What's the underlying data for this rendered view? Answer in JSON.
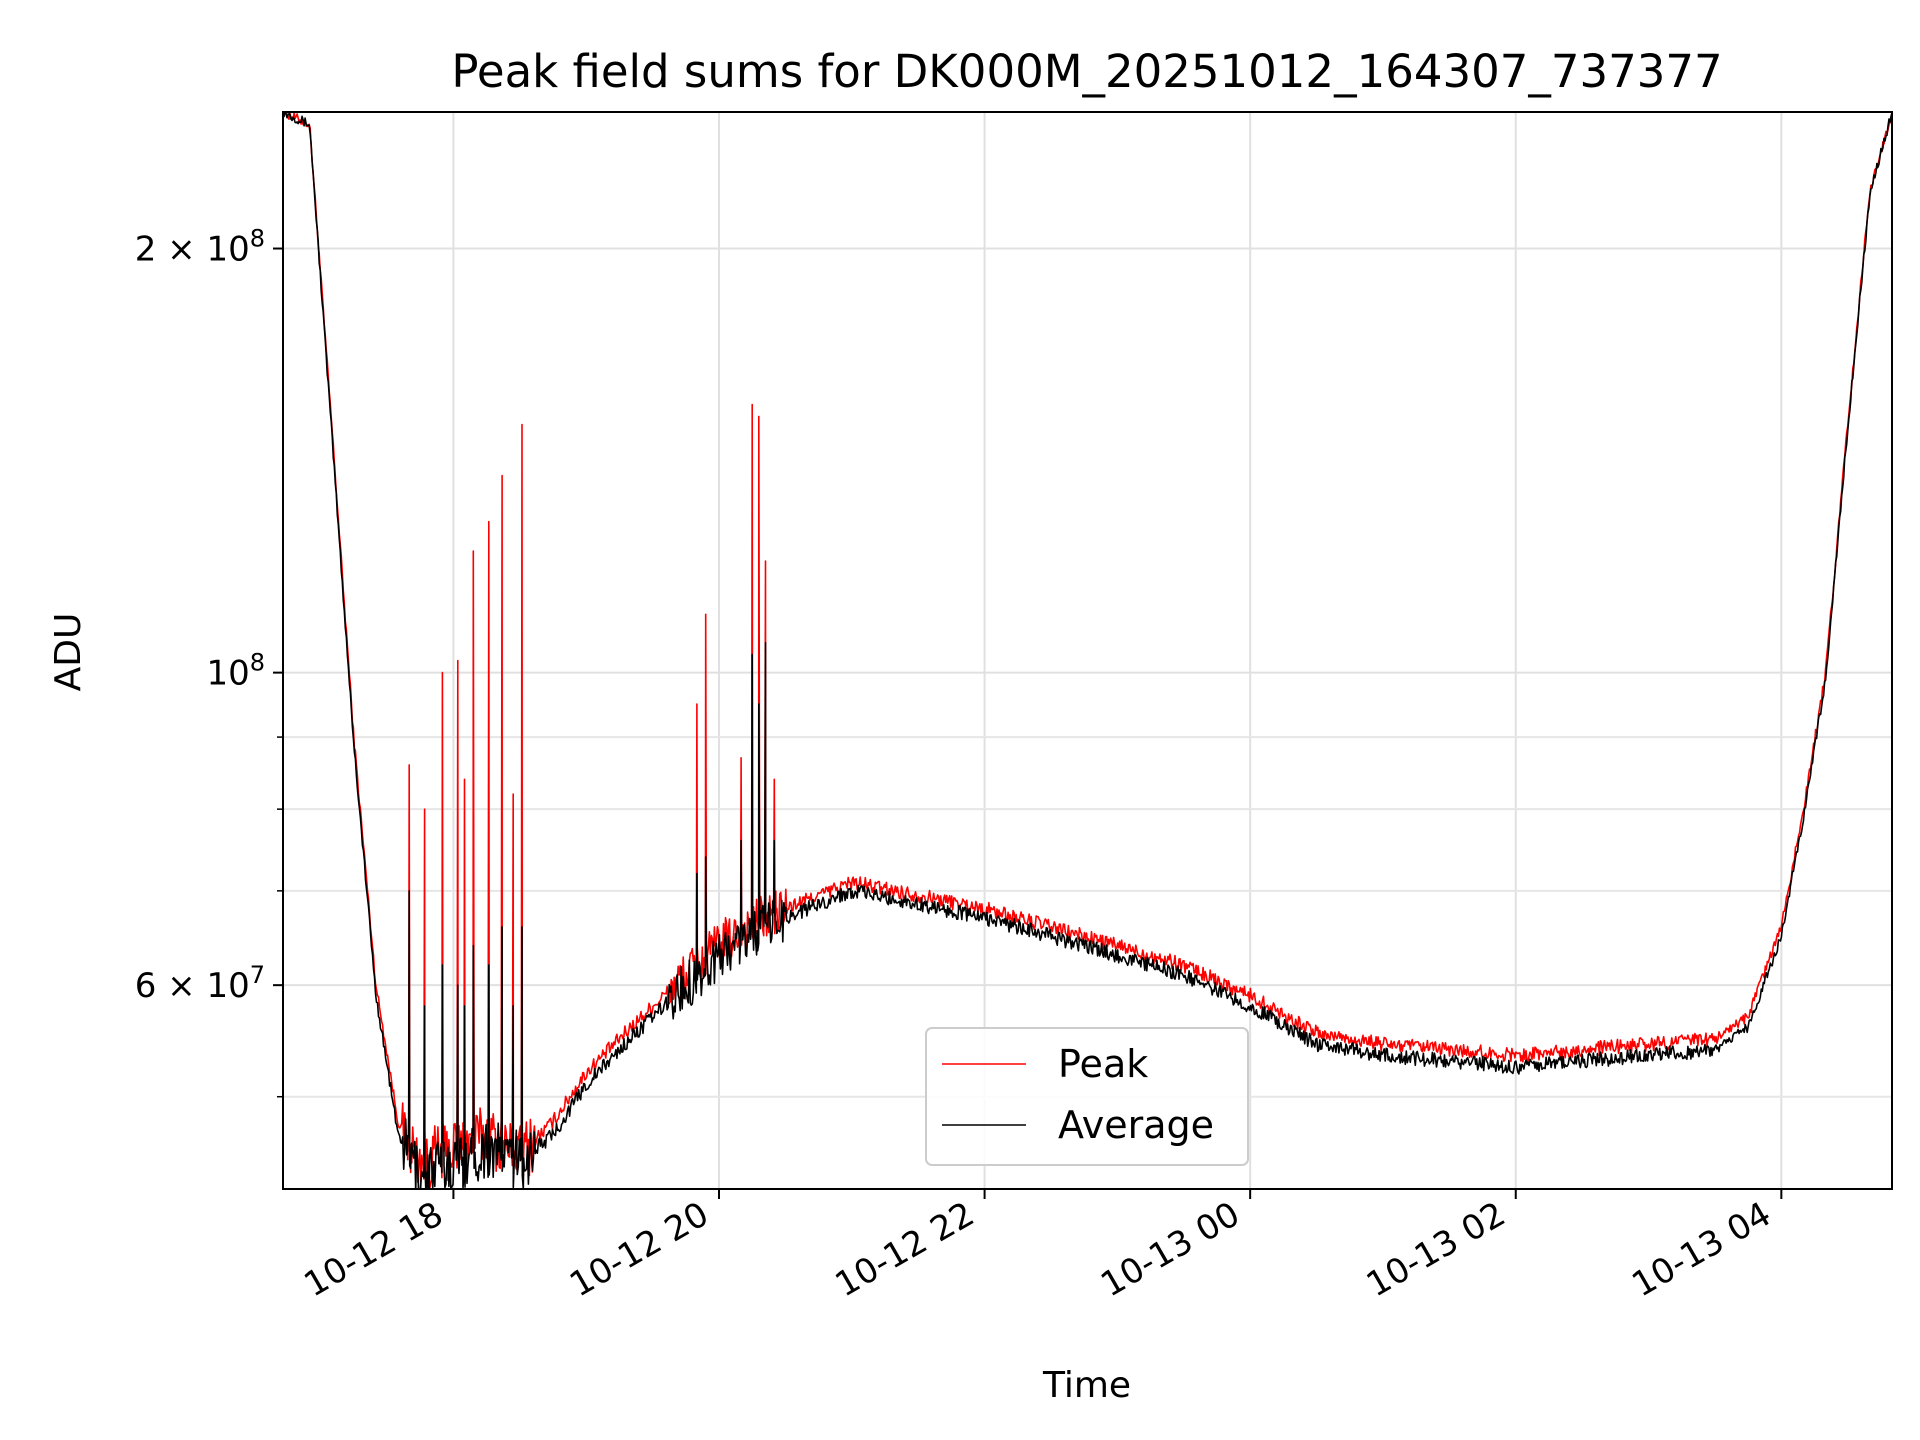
{
  "chart_data": {
    "type": "line",
    "title": "Peak field sums for DK000M_20251012_164307_737377",
    "xlabel": "Time",
    "ylabel": "ADU",
    "y_scale": "log",
    "xlim": [
      "2025-10-12 16:43",
      "2025-10-13 04:50"
    ],
    "ylim": [
      43000000,
      250000000
    ],
    "grid": true,
    "legend_position": "lower center",
    "x_tick_labels": [
      "10-12 18",
      "10-12 20",
      "10-12 22",
      "10-13 00",
      "10-13 02",
      "10-13 04"
    ],
    "y_tick_labels": [
      {
        "value": 200000000,
        "mantissa": "2",
        "exp": "8"
      },
      {
        "value": 100000000,
        "mantissa": "",
        "exp": "8"
      },
      {
        "value": 60000000,
        "mantissa": "6",
        "exp": "7"
      }
    ],
    "colors": {
      "Peak": "#ff0000",
      "Average": "#000000"
    },
    "x": [
      "2025-10-12 16:43",
      "2025-10-12 16:55",
      "2025-10-12 17:05",
      "2025-10-12 17:15",
      "2025-10-12 17:25",
      "2025-10-12 17:35",
      "2025-10-12 17:45",
      "2025-10-12 18:00",
      "2025-10-12 18:15",
      "2025-10-12 18:30",
      "2025-10-12 18:45",
      "2025-10-12 19:00",
      "2025-10-12 19:20",
      "2025-10-12 19:40",
      "2025-10-12 20:00",
      "2025-10-12 20:20",
      "2025-10-12 20:40",
      "2025-10-12 21:00",
      "2025-10-12 21:20",
      "2025-10-12 21:40",
      "2025-10-12 22:00",
      "2025-10-12 22:30",
      "2025-10-12 23:00",
      "2025-10-12 23:30",
      "2025-10-13 00:00",
      "2025-10-13 00:30",
      "2025-10-13 01:00",
      "2025-10-13 01:30",
      "2025-10-13 02:00",
      "2025-10-13 02:30",
      "2025-10-13 03:00",
      "2025-10-13 03:30",
      "2025-10-13 03:45",
      "2025-10-13 04:00",
      "2025-10-13 04:10",
      "2025-10-13 04:20",
      "2025-10-13 04:30",
      "2025-10-13 04:40",
      "2025-10-13 04:50"
    ],
    "series": [
      {
        "name": "Peak",
        "values": [
          250000000,
          245000000,
          150000000,
          90000000,
          60000000,
          48000000,
          45000000,
          46000000,
          47000000,
          45500000,
          48000000,
          52000000,
          56000000,
          60000000,
          64000000,
          67000000,
          69000000,
          71000000,
          70000000,
          69000000,
          68000000,
          66000000,
          64000000,
          62000000,
          59000000,
          55500000,
          54500000,
          54000000,
          53500000,
          54000000,
          54500000,
          55000000,
          57000000,
          66000000,
          80000000,
          100000000,
          150000000,
          220000000,
          250000000
        ]
      },
      {
        "name": "Average",
        "values": [
          250000000,
          245000000,
          148000000,
          89000000,
          59000000,
          47000000,
          44000000,
          45000000,
          46000000,
          45000000,
          47000000,
          51000000,
          55000000,
          59000000,
          63000000,
          66000000,
          68000000,
          70000000,
          69000000,
          68000000,
          67000000,
          65000000,
          63000000,
          61000000,
          58000000,
          54500000,
          53500000,
          53000000,
          52500000,
          53000000,
          53500000,
          54000000,
          56000000,
          65000000,
          79000000,
          99000000,
          149000000,
          219000000,
          250000000
        ]
      }
    ],
    "spikes": [
      {
        "time": "2025-10-12 17:40",
        "peak": 86000000,
        "average": 70000000
      },
      {
        "time": "2025-10-12 17:47",
        "peak": 80000000,
        "average": 58000000
      },
      {
        "time": "2025-10-12 17:55",
        "peak": 100000000,
        "average": 62000000
      },
      {
        "time": "2025-10-12 18:02",
        "peak": 102000000,
        "average": 60000000
      },
      {
        "time": "2025-10-12 18:05",
        "peak": 84000000,
        "average": 58000000
      },
      {
        "time": "2025-10-12 18:09",
        "peak": 122000000,
        "average": 64000000
      },
      {
        "time": "2025-10-12 18:16",
        "peak": 128000000,
        "average": 62000000
      },
      {
        "time": "2025-10-12 18:22",
        "peak": 138000000,
        "average": 66000000
      },
      {
        "time": "2025-10-12 18:27",
        "peak": 82000000,
        "average": 58000000
      },
      {
        "time": "2025-10-12 18:31",
        "peak": 150000000,
        "average": 66000000
      },
      {
        "time": "2025-10-12 19:50",
        "peak": 95000000,
        "average": 72000000
      },
      {
        "time": "2025-10-12 19:54",
        "peak": 110000000,
        "average": 74000000
      },
      {
        "time": "2025-10-12 20:10",
        "peak": 87000000,
        "average": 76000000
      },
      {
        "time": "2025-10-12 20:15",
        "peak": 155000000,
        "average": 103000000
      },
      {
        "time": "2025-10-12 20:18",
        "peak": 152000000,
        "average": 95000000
      },
      {
        "time": "2025-10-12 20:21",
        "peak": 120000000,
        "average": 105000000
      },
      {
        "time": "2025-10-12 20:25",
        "peak": 84000000,
        "average": 76000000
      }
    ]
  }
}
